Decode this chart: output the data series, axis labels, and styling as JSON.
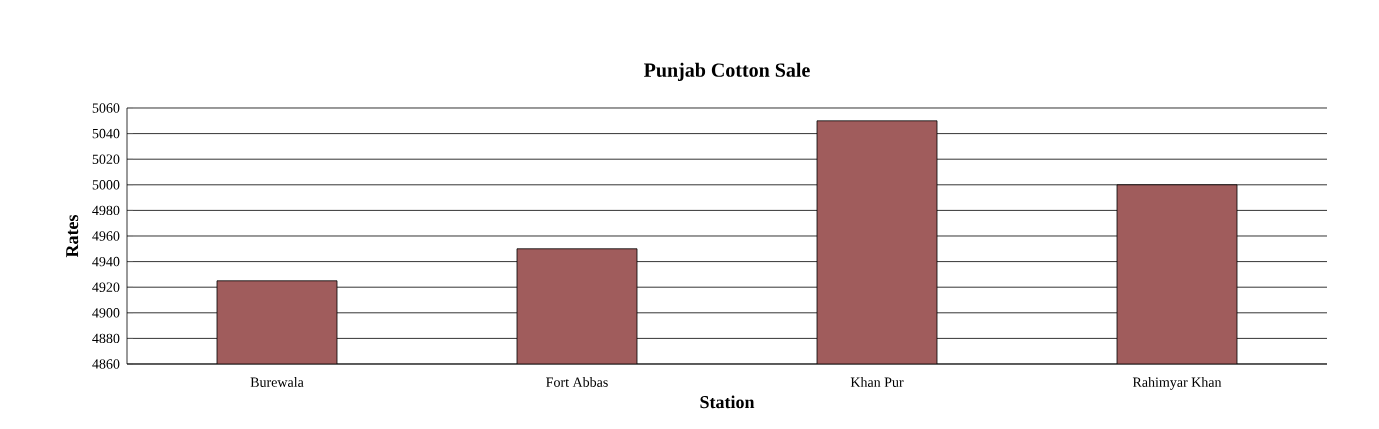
{
  "chart_data": {
    "type": "bar",
    "title": "Punjab Cotton Sale",
    "xlabel": "Station",
    "ylabel": "Rates",
    "categories": [
      "Burewala",
      "Fort Abbas",
      "Khan Pur",
      "Rahimyar Khan"
    ],
    "values": [
      4925,
      4950,
      5050,
      5000
    ],
    "color": "#a05c5c",
    "ylim": [
      4860,
      5060
    ],
    "yticks": [
      4860,
      4880,
      4900,
      4920,
      4940,
      4960,
      4980,
      5000,
      5020,
      5040,
      5060
    ],
    "grid": "y"
  }
}
